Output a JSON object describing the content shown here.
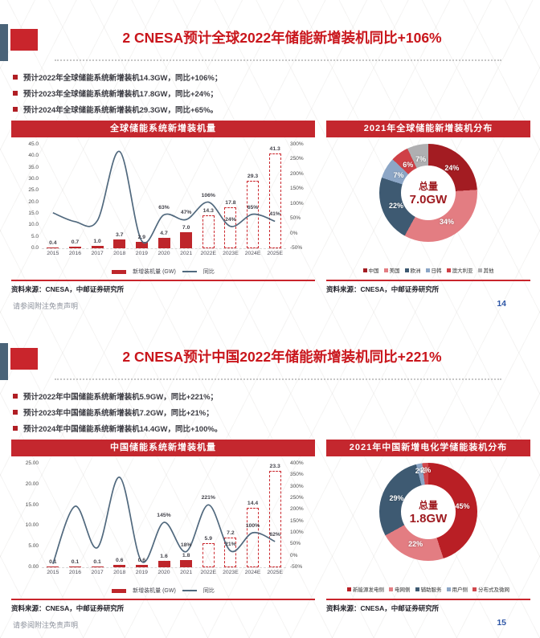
{
  "page": {
    "footer_note": "请参阅附注免责声明",
    "accent_color": "#C9161C"
  },
  "source_note": "资料来源：CNESA，中邮证券研究所",
  "slides": [
    {
      "page_number": "14",
      "title": "2 CNESA预计全球2022年储能新增装机同比+106%",
      "bullets": [
        "预计2022年全球储能系统新增装机14.3GW，同比+106%；",
        "预计2023年全球储能系统新增装机17.8GW，同比+24%；",
        "预计2024年全球储能系统新增装机29.3GW，同比+65%。"
      ]
    },
    {
      "page_number": "15",
      "title": "2 CNESA预计中国2022年储能新增装机同比+221%",
      "bullets": [
        "预计2022年中国储能系统新增装机5.9GW，同比+221%；",
        "预计2023年中国储能系统新增装机7.2GW，同比+21%；",
        "预计2024年中国储能系统新增装机14.4GW，同比+100%。"
      ]
    }
  ],
  "chart_data": [
    {
      "type": "bar",
      "subtype": "bar+line-combo",
      "title": "全球储能系统新增装机量",
      "categories": [
        "2015",
        "2016",
        "2017",
        "2018",
        "2019",
        "2020",
        "2021",
        "2022E",
        "2023E",
        "2024E",
        "2025E"
      ],
      "series": [
        {
          "name": "新增装机量 (GW)",
          "type": "bar",
          "values": [
            0.4,
            0.7,
            1.0,
            3.7,
            2.9,
            4.7,
            7.0,
            14.3,
            17.8,
            29.3,
            41.3
          ],
          "display": [
            "0.4",
            "0.7",
            "1.0",
            "3.7",
            "2.9",
            "4.7",
            "7.0",
            "14.3",
            "17.8",
            "29.3",
            "41.3"
          ],
          "forecast_from_index": 7,
          "color": "#BE262B"
        },
        {
          "name": "同比",
          "type": "line",
          "values": [
            70,
            40,
            43,
            277,
            -25,
            63,
            47,
            106,
            24,
            65,
            41
          ],
          "labels": [
            null,
            null,
            null,
            null,
            null,
            "63%",
            "47%",
            "106%",
            "24%",
            "65%",
            "41%"
          ],
          "color": "#51697E"
        }
      ],
      "left_axis": {
        "min": 0,
        "max": 45,
        "ticks": [
          "45.0",
          "40.0",
          "35.0",
          "30.0",
          "25.0",
          "20.0",
          "15.0",
          "10.0",
          "5.0",
          "0.0"
        ]
      },
      "right_axis": {
        "min": -50,
        "max": 300,
        "ticks": [
          "300%",
          "250%",
          "200%",
          "150%",
          "100%",
          "50%",
          "0%",
          "-50%"
        ]
      },
      "legend_position": "bottom",
      "grid": false
    },
    {
      "type": "pie",
      "subtype": "donut",
      "title": "2021年全球储能新增装机分布",
      "center_label": "总量",
      "center_value": "7.0GW",
      "slices": [
        {
          "label": "中国",
          "value": 24,
          "display": "24%",
          "color": "#A31C22"
        },
        {
          "label": "美国",
          "value": 34,
          "display": "34%",
          "color": "#E37D82"
        },
        {
          "label": "欧洲",
          "value": 22,
          "display": "22%",
          "color": "#3E5A72"
        },
        {
          "label": "日韩",
          "value": 7,
          "display": "7%",
          "color": "#8CA6C6"
        },
        {
          "label": "澳大利亚",
          "value": 6,
          "display": "6%",
          "color": "#CF4046"
        },
        {
          "label": "其他",
          "value": 7,
          "display": "7%",
          "color": "#AFAFB1"
        }
      ],
      "legend_position": "bottom"
    },
    {
      "type": "bar",
      "subtype": "bar+line-combo",
      "title": "中国储能系统新增装机量",
      "categories": [
        "2015",
        "2016",
        "2017",
        "2018",
        "2019",
        "2020",
        "2021",
        "2022E",
        "2023E",
        "2024E",
        "2025E"
      ],
      "series": [
        {
          "name": "新增装机量 (GW)",
          "type": "bar",
          "values": [
            0.1,
            0.1,
            0.1,
            0.6,
            0.6,
            1.6,
            1.8,
            5.9,
            7.2,
            14.4,
            23.3
          ],
          "display": [
            "0.1",
            "0.1",
            "0.1",
            "0.6",
            "0.6",
            "1.6",
            "1.8",
            "5.9",
            "7.2",
            "14.4",
            "23.3"
          ],
          "forecast_from_index": 7,
          "color": "#BE262B"
        },
        {
          "name": "同比",
          "type": "line",
          "values": [
            -35,
            215,
            35,
            341,
            -25,
            145,
            18,
            221,
            21,
            100,
            62
          ],
          "labels": [
            null,
            null,
            null,
            null,
            null,
            "145%",
            "18%",
            "221%",
            "21%",
            "100%",
            "62%"
          ],
          "color": "#51697E"
        }
      ],
      "left_axis": {
        "min": 0,
        "max": 25,
        "ticks": [
          "25.00",
          "20.00",
          "15.00",
          "10.00",
          "5.00",
          "0.00"
        ]
      },
      "right_axis": {
        "min": -50,
        "max": 400,
        "ticks": [
          "400%",
          "350%",
          "300%",
          "250%",
          "200%",
          "150%",
          "100%",
          "50%",
          "0%",
          "-50%"
        ]
      },
      "legend_position": "bottom",
      "grid": false
    },
    {
      "type": "pie",
      "subtype": "donut",
      "title": "2021年中国新增电化学储能装机分布",
      "center_label": "总量",
      "center_value": "1.8GW",
      "slices": [
        {
          "label": "新能源发电侧",
          "value": 45,
          "display": "45%",
          "color": "#B91F25"
        },
        {
          "label": "电网侧",
          "value": 22,
          "display": "22%",
          "color": "#E37D82"
        },
        {
          "label": "辅助服务",
          "value": 29,
          "display": "29%",
          "color": "#3E5A72"
        },
        {
          "label": "用户侧",
          "value": 2,
          "display": "2%",
          "color": "#8CA6C6"
        },
        {
          "label": "分布式及微网",
          "value": 2,
          "display": "2%",
          "color": "#D0484D"
        }
      ],
      "legend_position": "bottom"
    }
  ]
}
